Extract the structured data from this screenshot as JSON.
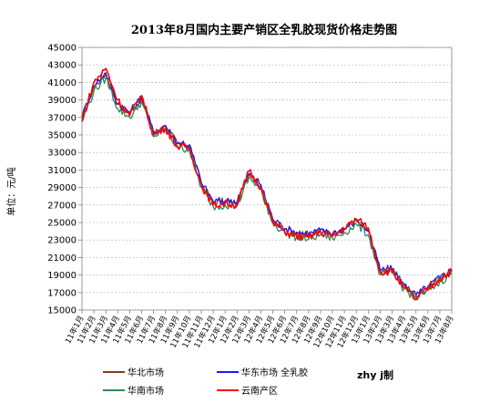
{
  "chart_data": {
    "type": "line",
    "title": "2013年8月国内主要产销区全乳胶现货价格走势图",
    "ylabel": "单位：元/吨",
    "xlabel": "",
    "ylim": [
      15000,
      45000
    ],
    "yticks": [
      "15000",
      "17000",
      "19000",
      "21000",
      "23000",
      "25000",
      "27000",
      "29000",
      "31000",
      "33000",
      "35000",
      "37000",
      "39000",
      "41000",
      "43000",
      "45000"
    ],
    "x": [
      "11年1月",
      "11年2月",
      "11年3月",
      "11年4月",
      "11年5月",
      "11年6月",
      "11年7月",
      "11年8月",
      "11年9月",
      "11年10月",
      "11年11月",
      "11年12月",
      "12年1月",
      "12年2月",
      "12年3月",
      "12年4月",
      "12年5月",
      "12年6月",
      "12年7月",
      "12年8月",
      "12年9月",
      "12年10月",
      "12年11月",
      "12年12月",
      "13年1月",
      "13年2月",
      "13年3月",
      "13年4月",
      "13年5月",
      "13年6月",
      "13年7月",
      "13年8月"
    ],
    "grid": true,
    "legend_position": "bottom",
    "series": [
      {
        "name": "华北市场",
        "color": "#8b3a1a",
        "values": [
          37000,
          40500,
          42000,
          38500,
          37500,
          39200,
          35200,
          36000,
          34000,
          33800,
          29500,
          27300,
          27400,
          27300,
          30500,
          29200,
          25300,
          24200,
          23800,
          23600,
          24000,
          23600,
          24200,
          25200,
          24000,
          19500,
          19600,
          17800,
          16600,
          17600,
          18600,
          19500
        ]
      },
      {
        "name": "华东市场 全乳胶",
        "color": "#1a1aff",
        "values": [
          37100,
          40600,
          42100,
          38600,
          37600,
          39300,
          35300,
          36100,
          34100,
          33900,
          29600,
          27400,
          27500,
          27400,
          30600,
          29300,
          25400,
          24300,
          23900,
          23700,
          24100,
          23700,
          24300,
          25300,
          24100,
          19600,
          19700,
          17900,
          16700,
          17700,
          18700,
          19600
        ]
      },
      {
        "name": "华南市场",
        "color": "#2e8b57",
        "values": [
          36500,
          40000,
          41500,
          38000,
          37000,
          38800,
          34800,
          35600,
          33600,
          33300,
          29000,
          26800,
          27000,
          26900,
          30100,
          28800,
          24900,
          23800,
          23300,
          23100,
          23600,
          23200,
          23800,
          24800,
          23600,
          19000,
          19200,
          17400,
          16300,
          17200,
          18200,
          19100
        ]
      },
      {
        "name": "云南产区",
        "color": "#ff0000",
        "values": [
          36600,
          41000,
          42600,
          39000,
          37200,
          39500,
          35000,
          35800,
          33700,
          33500,
          29300,
          27000,
          27200,
          27000,
          30900,
          29000,
          25000,
          24000,
          23400,
          23300,
          23900,
          23400,
          24300,
          25400,
          24400,
          19300,
          19500,
          17500,
          16200,
          17500,
          18500,
          19500
        ]
      }
    ]
  },
  "credit": "zhy j制"
}
